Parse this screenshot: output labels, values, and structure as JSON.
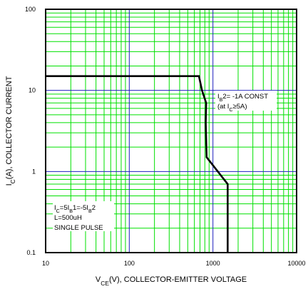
{
  "chart_data": {
    "type": "line",
    "x_scale": "log",
    "y_scale": "log",
    "xlim": [
      10,
      10000
    ],
    "ylim": [
      0.1,
      100
    ],
    "x_ticks": [
      "10",
      "100",
      "1000",
      "10000"
    ],
    "y_ticks": [
      "0.1",
      "1",
      "10",
      "100"
    ],
    "grid": true,
    "colors": {
      "minor_grid": "#00e000",
      "major_grid": "#2020c0",
      "curve": "#000000",
      "frame": "#000000",
      "background": "#ffffff"
    },
    "series": [
      {
        "x": [
          10,
          680,
          740,
          830,
          820,
          840,
          1500,
          1500
        ],
        "y": [
          15,
          15,
          10,
          7,
          4,
          1.5,
          0.7,
          0.1
        ]
      }
    ],
    "annotations": {
      "ib2": {
        "main": "I",
        "sub": "B",
        "rest": "2= -1A CONST",
        "line2_pre": "(at I",
        "line2_sub": "C",
        "line2_rest": "≥5A)"
      },
      "conditions": {
        "line1": [
          {
            "t": "I"
          },
          {
            "t": "C",
            "sub": true
          },
          {
            "t": "=5I"
          },
          {
            "t": "B",
            "sub": true
          },
          {
            "t": "1=-5I"
          },
          {
            "t": "B",
            "sub": true
          },
          {
            "t": "2"
          }
        ],
        "line2": "L=500uH",
        "line3": "SINGLE PULSE"
      }
    },
    "xlabel": {
      "pre": "V",
      "sub": "CE",
      "post": "(V), COLLECTOR-EMITTER VOLTAGE"
    },
    "ylabel": {
      "pre": "I",
      "sub": "C",
      "post": "(A), COLLECTOR CURRENT"
    }
  }
}
